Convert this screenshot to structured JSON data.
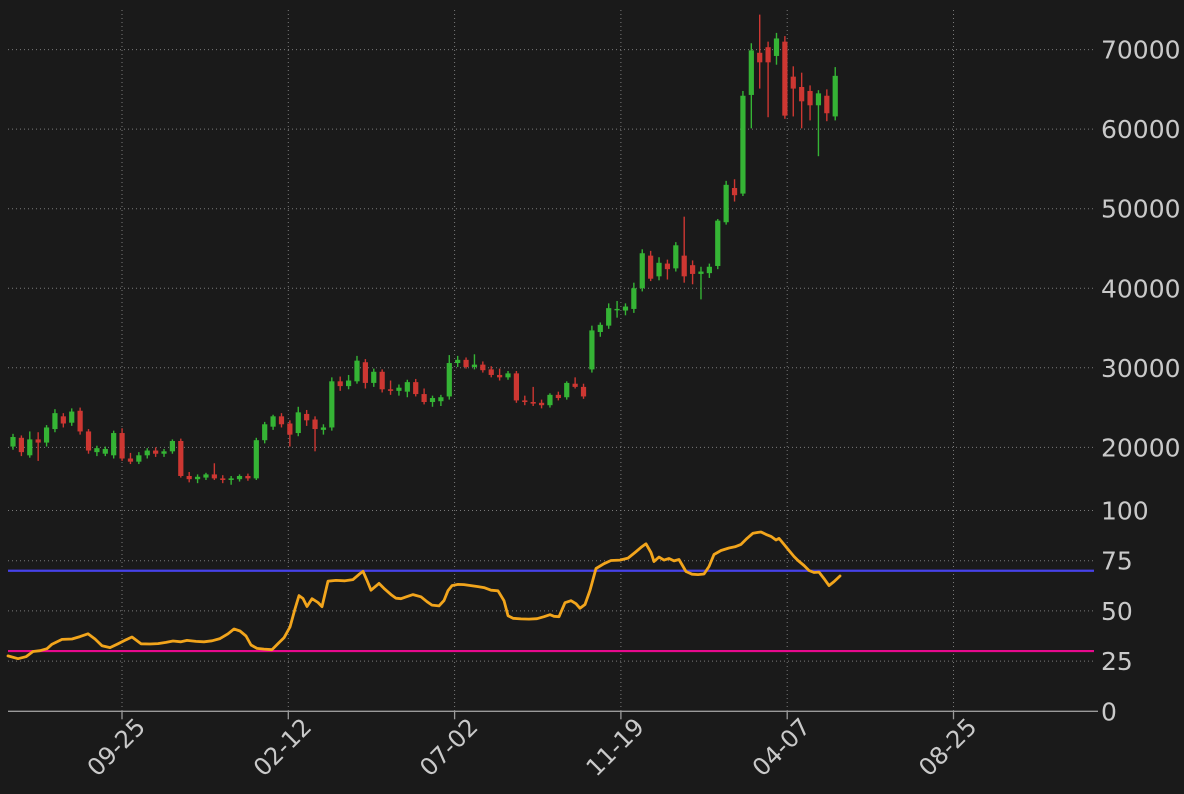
{
  "figure": {
    "background": "#1a1a1a",
    "grid_color": "#7a7a7a",
    "text_color": "#c9c9c9",
    "axis_color": "#9a9a9a"
  },
  "chart_data": {
    "type": "candlestick",
    "title": "",
    "grid": "dotted",
    "panels": [
      {
        "name": "price",
        "ylim": [
          13500,
          75500
        ],
        "tick_values": [
          70000,
          60000,
          50000,
          40000,
          30000,
          20000
        ],
        "tick_labels": [
          "70000",
          "60000",
          "50000",
          "40000",
          "30000",
          "20000"
        ]
      },
      {
        "name": "oscillator",
        "ylim": [
          0,
          100
        ],
        "tick_values": [
          100,
          75,
          50,
          25,
          0
        ],
        "tick_labels": [
          "100",
          "75",
          "50",
          "25",
          "0"
        ]
      }
    ],
    "x_axis": {
      "tick_labels": [
        "09-25",
        "02-12",
        "07-02",
        "11-19",
        "04-07",
        "08-25"
      ],
      "tick_x": [
        122,
        288.3,
        454.6,
        620.9,
        787.2,
        953.5
      ],
      "label_rotation_deg": 45
    },
    "candles": {
      "up_color": "#35b435",
      "down_color": "#cd3732",
      "x_start": 13,
      "x_step": 8.39,
      "ohlc": [
        [
          20100,
          21700,
          19700,
          21300
        ],
        [
          21200,
          21500,
          18900,
          19400
        ],
        [
          19000,
          22000,
          18700,
          21000
        ],
        [
          21000,
          21900,
          18300,
          20600
        ],
        [
          20600,
          22800,
          20100,
          22500
        ],
        [
          22300,
          24800,
          21900,
          24300
        ],
        [
          23900,
          24300,
          22500,
          23000
        ],
        [
          23100,
          24900,
          22700,
          24500
        ],
        [
          24600,
          25000,
          21600,
          22000
        ],
        [
          22000,
          22300,
          19200,
          19600
        ],
        [
          19400,
          20200,
          18900,
          19900
        ],
        [
          19200,
          20100,
          18900,
          19800
        ],
        [
          19000,
          22100,
          18600,
          21800
        ],
        [
          21800,
          22400,
          18300,
          18600
        ],
        [
          18600,
          19300,
          17900,
          18200
        ],
        [
          18200,
          19400,
          17900,
          19000
        ],
        [
          19000,
          19900,
          18600,
          19600
        ],
        [
          19600,
          20000,
          18800,
          19200
        ],
        [
          19200,
          19800,
          18800,
          19500
        ],
        [
          19500,
          21000,
          19200,
          20800
        ],
        [
          20800,
          21100,
          16200,
          16400
        ],
        [
          16400,
          16900,
          15600,
          16000
        ],
        [
          16000,
          16600,
          15500,
          16300
        ],
        [
          16200,
          16800,
          15900,
          16600
        ],
        [
          16600,
          18000,
          15900,
          16100
        ],
        [
          16100,
          16500,
          15500,
          15900
        ],
        [
          15900,
          16400,
          15300,
          16100
        ],
        [
          16000,
          16600,
          15700,
          16400
        ],
        [
          16400,
          16700,
          15800,
          16100
        ],
        [
          16100,
          21200,
          15900,
          20900
        ],
        [
          20900,
          23200,
          20500,
          22900
        ],
        [
          22600,
          24100,
          22200,
          23900
        ],
        [
          23900,
          24300,
          22500,
          22900
        ],
        [
          23000,
          23400,
          20100,
          21600
        ],
        [
          21800,
          25100,
          21400,
          24400
        ],
        [
          24200,
          24700,
          22700,
          23400
        ],
        [
          23500,
          23900,
          19500,
          22300
        ],
        [
          22200,
          22900,
          21600,
          22500
        ],
        [
          22500,
          28800,
          22100,
          28300
        ],
        [
          28300,
          28900,
          27100,
          27700
        ],
        [
          27700,
          29100,
          27300,
          28400
        ],
        [
          28300,
          31500,
          28000,
          30900
        ],
        [
          30700,
          31100,
          27400,
          28100
        ],
        [
          28100,
          29900,
          27600,
          29500
        ],
        [
          29500,
          29800,
          26900,
          27300
        ],
        [
          27300,
          28400,
          26600,
          27100
        ],
        [
          27100,
          27900,
          26500,
          27500
        ],
        [
          27000,
          28500,
          26300,
          28200
        ],
        [
          28200,
          28600,
          26400,
          26700
        ],
        [
          26700,
          27400,
          25400,
          25700
        ],
        [
          25700,
          26500,
          25100,
          26200
        ],
        [
          25800,
          26600,
          25200,
          26300
        ],
        [
          26400,
          31600,
          26000,
          30600
        ],
        [
          30600,
          31500,
          30100,
          31000
        ],
        [
          31000,
          31300,
          29900,
          30100
        ],
        [
          30100,
          31700,
          29800,
          30400
        ],
        [
          30400,
          30800,
          29400,
          29700
        ],
        [
          29800,
          30200,
          28800,
          29100
        ],
        [
          29100,
          29900,
          28400,
          28800
        ],
        [
          28800,
          29600,
          28500,
          29300
        ],
        [
          29300,
          29600,
          25600,
          25900
        ],
        [
          25900,
          26500,
          25300,
          25700
        ],
        [
          25700,
          27600,
          25200,
          25500
        ],
        [
          25600,
          26000,
          24900,
          25300
        ],
        [
          25300,
          26800,
          25000,
          26600
        ],
        [
          26600,
          27000,
          25900,
          26200
        ],
        [
          26300,
          28300,
          26000,
          28100
        ],
        [
          28000,
          28800,
          27400,
          27600
        ],
        [
          27600,
          28000,
          26100,
          26400
        ],
        [
          29800,
          35300,
          29400,
          34700
        ],
        [
          34500,
          35700,
          33900,
          35400
        ],
        [
          35300,
          38100,
          34900,
          37500
        ],
        [
          37300,
          38400,
          36300,
          37400
        ],
        [
          37200,
          38100,
          36600,
          37700
        ],
        [
          37400,
          40700,
          36900,
          40000
        ],
        [
          40000,
          44900,
          39600,
          44400
        ],
        [
          44100,
          44700,
          40900,
          41200
        ],
        [
          41500,
          43900,
          41000,
          43200
        ],
        [
          43100,
          43600,
          41100,
          42400
        ],
        [
          42500,
          45800,
          42100,
          45400
        ],
        [
          44100,
          49000,
          40700,
          41500
        ],
        [
          42900,
          43500,
          40500,
          41800
        ],
        [
          41800,
          42700,
          38600,
          42100
        ],
        [
          41900,
          43100,
          41300,
          42700
        ],
        [
          42800,
          48700,
          42400,
          48500
        ],
        [
          48300,
          53500,
          48000,
          53000
        ],
        [
          52600,
          53700,
          50900,
          51700
        ],
        [
          51900,
          64800,
          51600,
          64200
        ],
        [
          64300,
          70800,
          60100,
          69900
        ],
        [
          69600,
          74400,
          65100,
          68400
        ],
        [
          70300,
          71000,
          61500,
          68400
        ],
        [
          69200,
          72100,
          68100,
          71400
        ],
        [
          71000,
          71700,
          61300,
          61700
        ],
        [
          66600,
          67900,
          61600,
          65100
        ],
        [
          65300,
          67100,
          60100,
          63500
        ],
        [
          64800,
          65500,
          61100,
          63000
        ],
        [
          63000,
          64900,
          56600,
          64500
        ],
        [
          64200,
          65000,
          61000,
          62000
        ],
        [
          61600,
          67800,
          61100,
          66700
        ]
      ]
    },
    "oscillator_line": {
      "name": "rsi-line",
      "color": "#f2a51c",
      "points": [
        [
          8,
          27.6
        ],
        [
          18,
          26.2
        ],
        [
          26,
          27.2
        ],
        [
          33,
          29.8
        ],
        [
          40,
          30.2
        ],
        [
          47,
          31.2
        ],
        [
          52,
          33.4
        ],
        [
          62,
          35.8
        ],
        [
          72,
          36.0
        ],
        [
          80,
          37.2
        ],
        [
          88,
          38.6
        ],
        [
          95,
          36.0
        ],
        [
          102,
          32.6
        ],
        [
          110,
          31.7
        ],
        [
          118,
          33.6
        ],
        [
          126,
          35.6
        ],
        [
          132,
          37.0
        ],
        [
          141,
          33.6
        ],
        [
          150,
          33.5
        ],
        [
          158,
          33.7
        ],
        [
          166,
          34.3
        ],
        [
          173,
          35.0
        ],
        [
          181,
          34.6
        ],
        [
          187,
          35.3
        ],
        [
          196,
          34.8
        ],
        [
          204,
          34.6
        ],
        [
          212,
          35.1
        ],
        [
          220,
          36.2
        ],
        [
          228,
          38.6
        ],
        [
          234,
          41.0
        ],
        [
          240,
          40.0
        ],
        [
          246,
          37.5
        ],
        [
          251,
          33.0
        ],
        [
          257,
          31.3
        ],
        [
          264,
          31.0
        ],
        [
          272,
          30.7
        ],
        [
          279,
          34.2
        ],
        [
          284,
          36.6
        ],
        [
          290,
          42.0
        ],
        [
          295,
          51.0
        ],
        [
          299,
          57.6
        ],
        [
          303,
          56.2
        ],
        [
          307,
          52.2
        ],
        [
          312,
          56.1
        ],
        [
          318,
          54.2
        ],
        [
          322,
          52.1
        ],
        [
          328,
          64.8
        ],
        [
          336,
          65.2
        ],
        [
          345,
          65.0
        ],
        [
          353,
          65.6
        ],
        [
          359,
          68.2
        ],
        [
          363,
          69.7
        ],
        [
          367,
          65.2
        ],
        [
          371,
          60.3
        ],
        [
          375,
          62.0
        ],
        [
          379,
          63.7
        ],
        [
          384,
          61.2
        ],
        [
          391,
          58.1
        ],
        [
          396,
          56.3
        ],
        [
          401,
          56.1
        ],
        [
          407,
          57.1
        ],
        [
          413,
          58.1
        ],
        [
          421,
          57.0
        ],
        [
          427,
          54.6
        ],
        [
          432,
          52.9
        ],
        [
          439,
          52.5
        ],
        [
          444,
          55.2
        ],
        [
          448,
          60.1
        ],
        [
          452,
          62.6
        ],
        [
          458,
          63.2
        ],
        [
          464,
          63.1
        ],
        [
          471,
          62.6
        ],
        [
          478,
          62.1
        ],
        [
          484,
          61.6
        ],
        [
          491,
          60.3
        ],
        [
          498,
          60.0
        ],
        [
          504,
          55.1
        ],
        [
          508,
          47.6
        ],
        [
          513,
          46.3
        ],
        [
          521,
          46.0
        ],
        [
          529,
          45.9
        ],
        [
          537,
          46.1
        ],
        [
          544,
          47.1
        ],
        [
          550,
          48.1
        ],
        [
          554,
          47.3
        ],
        [
          559,
          47.1
        ],
        [
          565,
          54.1
        ],
        [
          571,
          55.1
        ],
        [
          576,
          53.6
        ],
        [
          580,
          51.3
        ],
        [
          585,
          53.2
        ],
        [
          590,
          60.2
        ],
        [
          596,
          71.1
        ],
        [
          604,
          73.5
        ],
        [
          611,
          75.1
        ],
        [
          620,
          75.3
        ],
        [
          628,
          76.3
        ],
        [
          635,
          79.1
        ],
        [
          641,
          81.6
        ],
        [
          646,
          83.4
        ],
        [
          651,
          79.1
        ],
        [
          654,
          74.6
        ],
        [
          659,
          76.8
        ],
        [
          664,
          75.3
        ],
        [
          669,
          76.1
        ],
        [
          674,
          74.9
        ],
        [
          679,
          75.6
        ],
        [
          686,
          69.6
        ],
        [
          692,
          68.3
        ],
        [
          698,
          68.1
        ],
        [
          704,
          68.4
        ],
        [
          709,
          72.1
        ],
        [
          714,
          78.1
        ],
        [
          721,
          80.1
        ],
        [
          729,
          81.3
        ],
        [
          735,
          81.9
        ],
        [
          741,
          83.1
        ],
        [
          747,
          86.1
        ],
        [
          753,
          88.7
        ],
        [
          758,
          89.1
        ],
        [
          761,
          89.3
        ],
        [
          766,
          88.1
        ],
        [
          771,
          87.1
        ],
        [
          776,
          85.3
        ],
        [
          779,
          86.1
        ],
        [
          784,
          83.1
        ],
        [
          789,
          80.1
        ],
        [
          794,
          77.1
        ],
        [
          798,
          75.1
        ],
        [
          804,
          72.6
        ],
        [
          809,
          70.1
        ],
        [
          814,
          69.1
        ],
        [
          819,
          69.3
        ],
        [
          824,
          66.1
        ],
        [
          829,
          62.6
        ],
        [
          834,
          64.6
        ],
        [
          840,
          67.4
        ]
      ]
    },
    "hlines": [
      {
        "name": "overbought-line",
        "value": 70,
        "color": "#4642e8"
      },
      {
        "name": "oversold-line",
        "value": 30,
        "color": "#e7098d"
      }
    ]
  }
}
